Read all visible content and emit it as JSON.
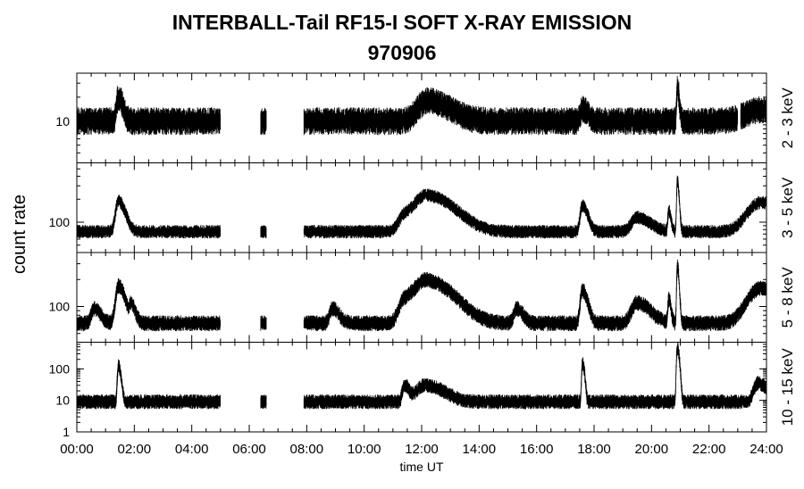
{
  "chart_data": {
    "type": "line",
    "title": "INTERBALL-Tail RF15-I SOFT X-RAY EMISSION",
    "subtitle": "970906",
    "xlabel": "time UT",
    "ylabel": "count rate",
    "x_ticks": [
      "00:00",
      "02:00",
      "04:00",
      "06:00",
      "08:00",
      "10:00",
      "12:00",
      "14:00",
      "16:00",
      "18:00",
      "20:00",
      "22:00",
      "24:00"
    ],
    "xlim_hours": [
      0,
      24
    ],
    "y_scale": "log",
    "grid": false,
    "panels": [
      {
        "channel": "2 - 3 keV",
        "ylim": [
          3,
          40
        ],
        "y_ticks": [
          "10"
        ],
        "baseline": 10,
        "noise_factor": 1.25,
        "data_gaps_hours": [
          [
            5.0,
            6.4
          ],
          [
            6.6,
            7.9
          ],
          [
            23.0,
            23.1
          ]
        ],
        "peaks": [
          {
            "time_hour": 1.45,
            "value": 20,
            "width_hour": 0.1
          },
          {
            "time_hour": 12.2,
            "value": 18,
            "width_hour": 0.5
          },
          {
            "time_hour": 17.6,
            "value": 14,
            "width_hour": 0.12
          },
          {
            "time_hour": 20.9,
            "value": 27,
            "width_hour": 0.04
          },
          {
            "time_hour": 23.8,
            "value": 14,
            "width_hour": 0.8
          }
        ]
      },
      {
        "channel": "3 - 5 keV",
        "ylim": [
          40,
          600
        ],
        "y_ticks": [
          "100"
        ],
        "baseline": 75,
        "noise_factor": 1.12,
        "data_gaps_hours": [
          [
            5.0,
            6.4
          ],
          [
            6.6,
            7.9
          ]
        ],
        "peaks": [
          {
            "time_hour": 1.45,
            "value": 190,
            "width_hour": 0.15
          },
          {
            "time_hour": 11.4,
            "value": 120,
            "width_hour": 0.3
          },
          {
            "time_hour": 12.2,
            "value": 220,
            "width_hour": 0.6
          },
          {
            "time_hour": 17.6,
            "value": 165,
            "width_hour": 0.12
          },
          {
            "time_hour": 19.5,
            "value": 115,
            "width_hour": 0.3
          },
          {
            "time_hour": 20.6,
            "value": 140,
            "width_hour": 0.05
          },
          {
            "time_hour": 20.9,
            "value": 340,
            "width_hour": 0.04
          },
          {
            "time_hour": 23.8,
            "value": 180,
            "width_hour": 0.7
          }
        ]
      },
      {
        "channel": "5 - 8 keV",
        "ylim": [
          40,
          400
        ],
        "y_ticks": [
          "100"
        ],
        "baseline": 65,
        "noise_factor": 1.12,
        "data_gaps_hours": [
          [
            5.0,
            6.4
          ],
          [
            6.6,
            7.9
          ]
        ],
        "peaks": [
          {
            "time_hour": 0.6,
            "value": 95,
            "width_hour": 0.15
          },
          {
            "time_hour": 1.45,
            "value": 170,
            "width_hour": 0.15
          },
          {
            "time_hour": 1.9,
            "value": 100,
            "width_hour": 0.1
          },
          {
            "time_hour": 8.9,
            "value": 95,
            "width_hour": 0.15
          },
          {
            "time_hour": 11.4,
            "value": 115,
            "width_hour": 0.3
          },
          {
            "time_hour": 12.2,
            "value": 190,
            "width_hour": 0.6
          },
          {
            "time_hour": 15.3,
            "value": 95,
            "width_hour": 0.15
          },
          {
            "time_hour": 17.6,
            "value": 150,
            "width_hour": 0.12
          },
          {
            "time_hour": 19.5,
            "value": 110,
            "width_hour": 0.3
          },
          {
            "time_hour": 20.6,
            "value": 120,
            "width_hour": 0.05
          },
          {
            "time_hour": 20.9,
            "value": 280,
            "width_hour": 0.04
          },
          {
            "time_hour": 23.8,
            "value": 160,
            "width_hour": 0.7
          }
        ]
      },
      {
        "channel": "10 - 15 keV",
        "ylim": [
          1,
          700
        ],
        "y_ticks": [
          "1",
          "10",
          "100"
        ],
        "baseline": 9,
        "noise_factor": 1.35,
        "data_gaps_hours": [
          [
            5.0,
            6.4
          ],
          [
            6.6,
            7.9
          ]
        ],
        "peaks": [
          {
            "time_hour": 1.45,
            "value": 120,
            "width_hour": 0.05
          },
          {
            "time_hour": 11.4,
            "value": 30,
            "width_hour": 0.1
          },
          {
            "time_hour": 12.1,
            "value": 30,
            "width_hour": 0.4
          },
          {
            "time_hour": 17.6,
            "value": 150,
            "width_hour": 0.04
          },
          {
            "time_hour": 20.9,
            "value": 450,
            "width_hour": 0.04
          },
          {
            "time_hour": 23.7,
            "value": 35,
            "width_hour": 0.2
          }
        ]
      }
    ]
  }
}
